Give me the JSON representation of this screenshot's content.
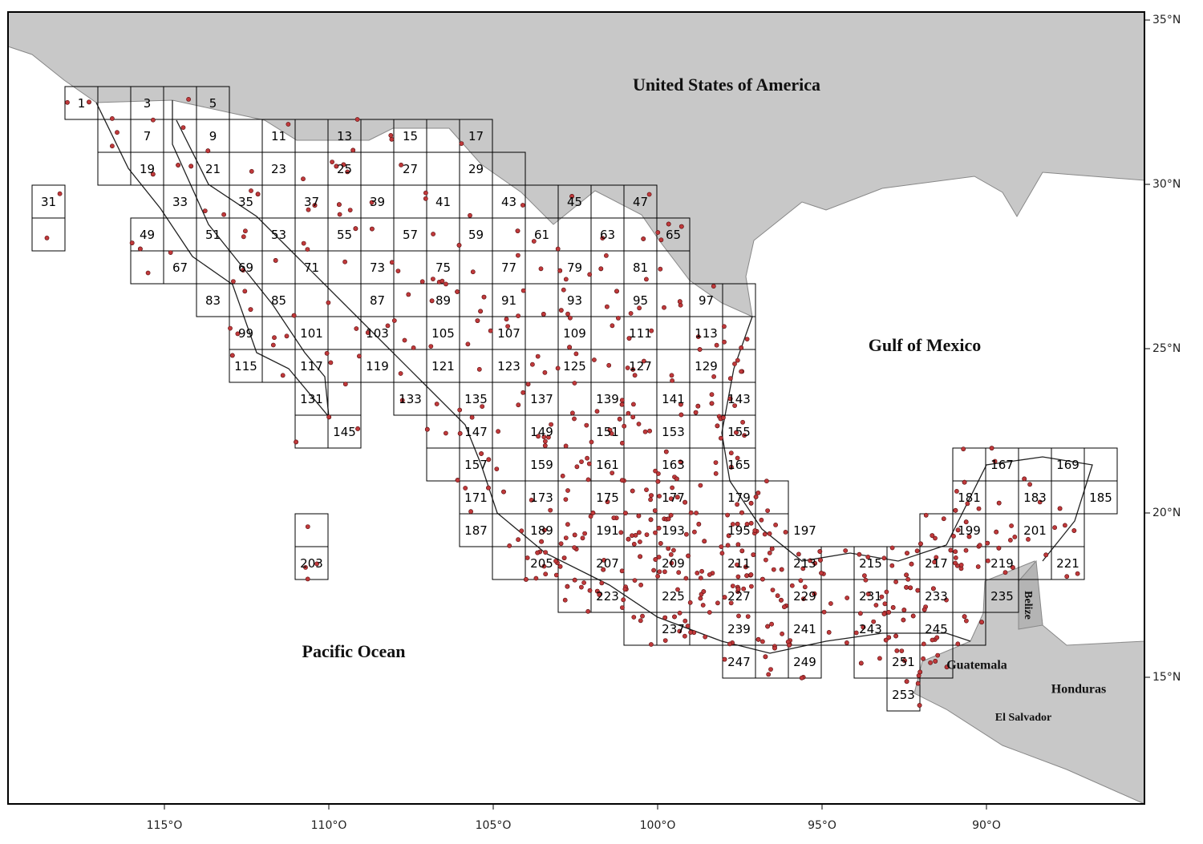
{
  "map": {
    "country_labels": [
      "United States of America",
      "Guatemala",
      "Belize",
      "Honduras",
      "El Salvador"
    ],
    "water_labels": [
      "Gulf of Mexico",
      "Pacific Ocean"
    ],
    "cells": [
      1,
      3,
      5,
      7,
      9,
      11,
      13,
      15,
      17,
      19,
      21,
      23,
      25,
      27,
      29,
      31,
      33,
      35,
      37,
      39,
      41,
      43,
      45,
      47,
      49,
      51,
      53,
      55,
      57,
      59,
      61,
      63,
      65,
      67,
      69,
      71,
      73,
      75,
      77,
      79,
      81,
      83,
      85,
      87,
      89,
      91,
      93,
      95,
      97,
      99,
      101,
      103,
      105,
      107,
      109,
      111,
      113,
      115,
      117,
      119,
      121,
      123,
      125,
      127,
      129,
      131,
      133,
      135,
      137,
      139,
      141,
      143,
      145,
      147,
      149,
      151,
      153,
      155,
      157,
      159,
      161,
      163,
      165,
      167,
      169,
      171,
      173,
      175,
      177,
      179,
      181,
      183,
      185,
      187,
      189,
      191,
      193,
      195,
      197,
      199,
      201,
      203,
      205,
      207,
      209,
      211,
      213,
      215,
      217,
      219,
      221,
      223,
      225,
      227,
      229,
      231,
      233,
      235,
      237,
      239,
      241,
      243,
      245,
      247,
      249,
      251,
      253
    ],
    "x_ticks": [
      {
        "value": -115,
        "label": "115°O"
      },
      {
        "value": -110,
        "label": "110°O"
      },
      {
        "value": -105,
        "label": "105°O"
      },
      {
        "value": -100,
        "label": "100°O"
      },
      {
        "value": -95,
        "label": "95°O"
      },
      {
        "value": -90,
        "label": "90°O"
      }
    ],
    "y_ticks": [
      {
        "value": 35,
        "label": "35°N"
      },
      {
        "value": 30,
        "label": "30°N"
      },
      {
        "value": 25,
        "label": "25°N"
      },
      {
        "value": 20,
        "label": "20°N"
      },
      {
        "value": 15,
        "label": "15°N"
      }
    ]
  }
}
